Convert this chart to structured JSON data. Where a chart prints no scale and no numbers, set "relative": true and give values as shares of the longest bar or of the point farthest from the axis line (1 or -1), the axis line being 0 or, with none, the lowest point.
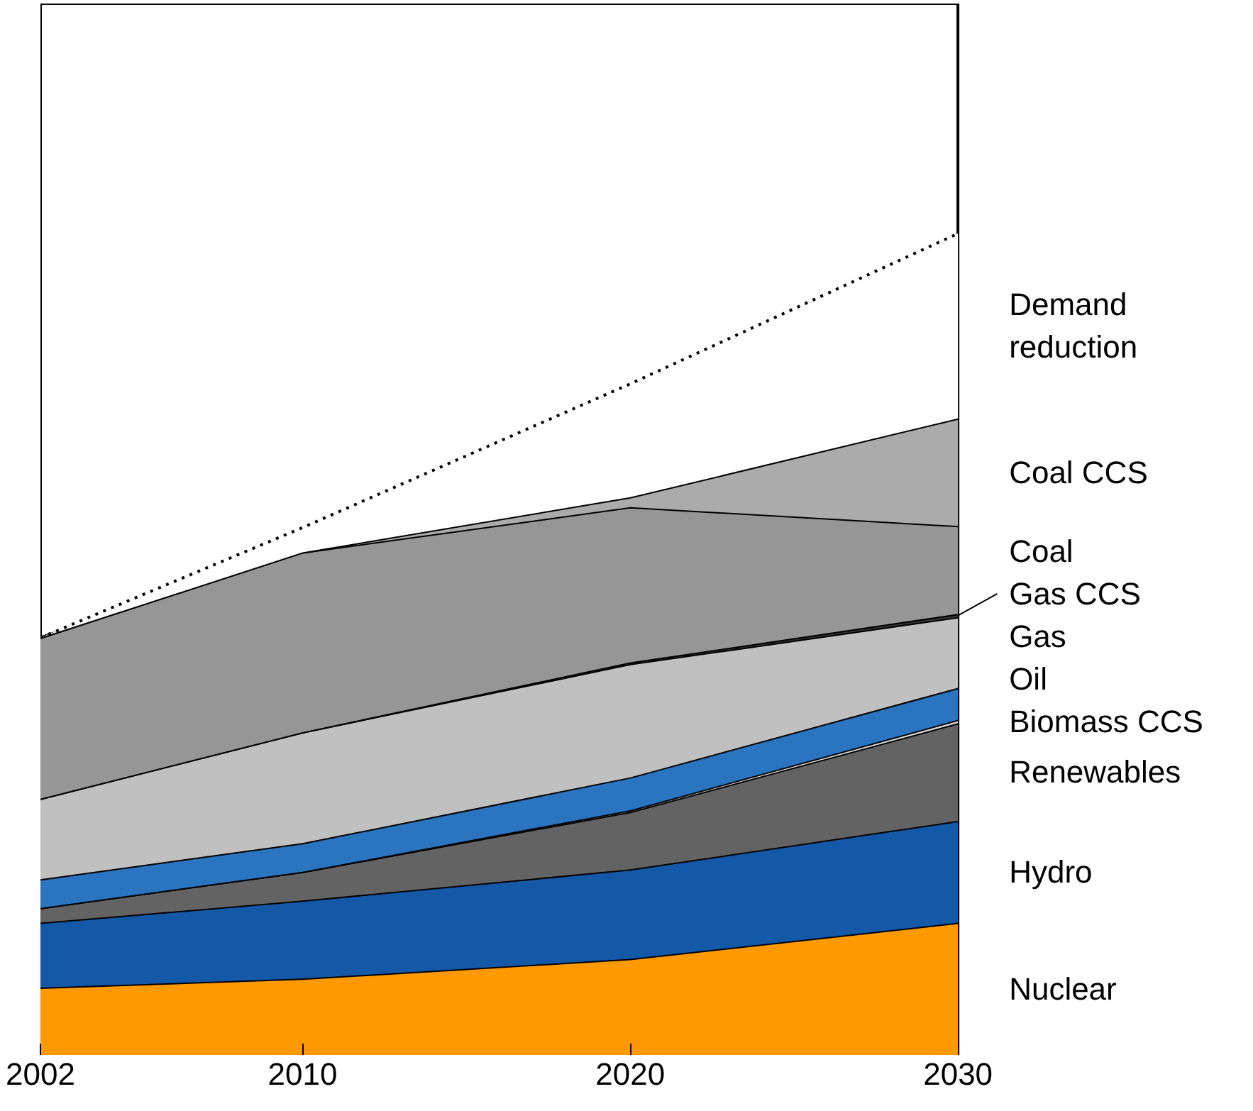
{
  "chart_data": {
    "type": "area",
    "stacked": true,
    "relative": true,
    "legend": false,
    "grid": false,
    "x": [
      2002,
      2010,
      2020,
      2030
    ],
    "xlim": [
      2002,
      2030
    ],
    "xticks": [
      2002,
      2010,
      2020,
      2030
    ],
    "series": [
      {
        "name": "Nuclear",
        "color": "#ff9900",
        "values": [
          0.082,
          0.093,
          0.117,
          0.161
        ]
      },
      {
        "name": "Hydro",
        "color": "#1459a8",
        "values": [
          0.079,
          0.095,
          0.109,
          0.124
        ]
      },
      {
        "name": "Renewables",
        "color": "#636363",
        "values": [
          0.018,
          0.035,
          0.07,
          0.119
        ]
      },
      {
        "name": "Biomass CCS",
        "color": "#d9d9d9",
        "values": [
          0,
          0,
          0.002,
          0.004
        ]
      },
      {
        "name": "Oil",
        "color": "#2b74c0",
        "values": [
          0.035,
          0.035,
          0.04,
          0.039
        ]
      },
      {
        "name": "Gas",
        "color": "#c0c0c0",
        "values": [
          0.098,
          0.135,
          0.138,
          0.086
        ]
      },
      {
        "name": "Gas CCS",
        "color": "#333333",
        "values": [
          0,
          0,
          0.002,
          0.004
        ]
      },
      {
        "name": "Coal",
        "color": "#969696",
        "values": [
          0.196,
          0.219,
          0.189,
          0.107
        ]
      },
      {
        "name": "Coal CCS",
        "color": "#ababab",
        "values": [
          0,
          0,
          0.012,
          0.131
        ]
      },
      {
        "name": "Demand\nreduction",
        "color": "#ffffff",
        "line_style": "dotted",
        "values": [
          0,
          0.03,
          0.138,
          0.225
        ]
      }
    ]
  }
}
